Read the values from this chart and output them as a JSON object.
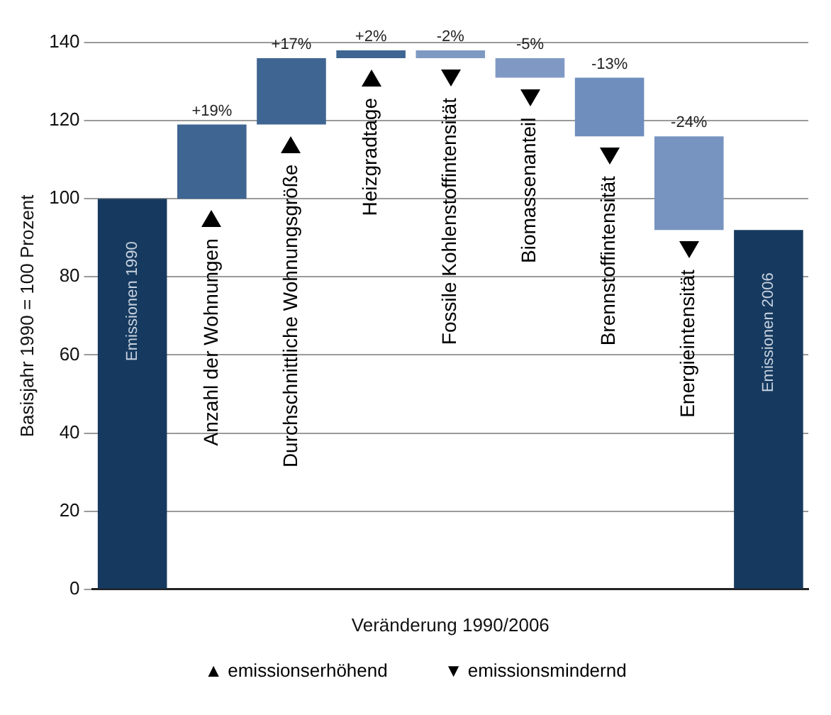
{
  "chart_data": {
    "type": "bar",
    "xlabel": "Veränderung 1990/2006",
    "ylabel": "Basisjahr 1990 = 100 Prozent",
    "categories": [
      "Emissionen 1990",
      "Anzahl der Wohnungen",
      "Durchschnittliche Wohnungsgröße",
      "Heizgradtage",
      "Fossile Kohlenstoffintensität",
      "Biomassenanteil",
      "Brennstoffintensität",
      "Energieintensität",
      "Emissionen 2006"
    ],
    "values": [
      100,
      19,
      17,
      2,
      -2,
      -5,
      -15,
      -24,
      92
    ],
    "base": [
      0,
      100,
      119,
      136,
      138,
      136,
      131,
      116,
      0
    ],
    "colors": [
      "#163a5f",
      "#3f6592",
      "#3f6592",
      "#3f6592",
      "#7f9ac2",
      "#8099c4",
      "#6f8ebd",
      "#7793c0",
      "#163a5f"
    ],
    "ylim": [
      0,
      140
    ],
    "yticks": [
      0,
      20,
      40,
      60,
      80,
      100,
      120,
      140
    ],
    "grid": "y",
    "legend": false,
    "annotations": [
      {
        "text": "+19%",
        "x": "Anzahl der Wohnungen",
        "y": 119
      },
      {
        "text": "+17%",
        "x": "Durchschnittliche Wohnungsgröße",
        "y": 136
      },
      {
        "text": "+2%",
        "x": "Heizgradtage",
        "y": 138
      },
      {
        "text": "-2%",
        "x": "Fossile Kohlenstoffintensität",
        "y": 138
      },
      {
        "text": "-5%",
        "x": "Biomassenanteil",
        "y": 136
      },
      {
        "text": "-13%",
        "x": "Brennstoffintensität",
        "y": 131
      },
      {
        "text": "-24%",
        "x": "Energieintensität",
        "y": 116
      },
      "▲ emissionserhöhend",
      "▼ emissionsmindernd"
    ]
  }
}
